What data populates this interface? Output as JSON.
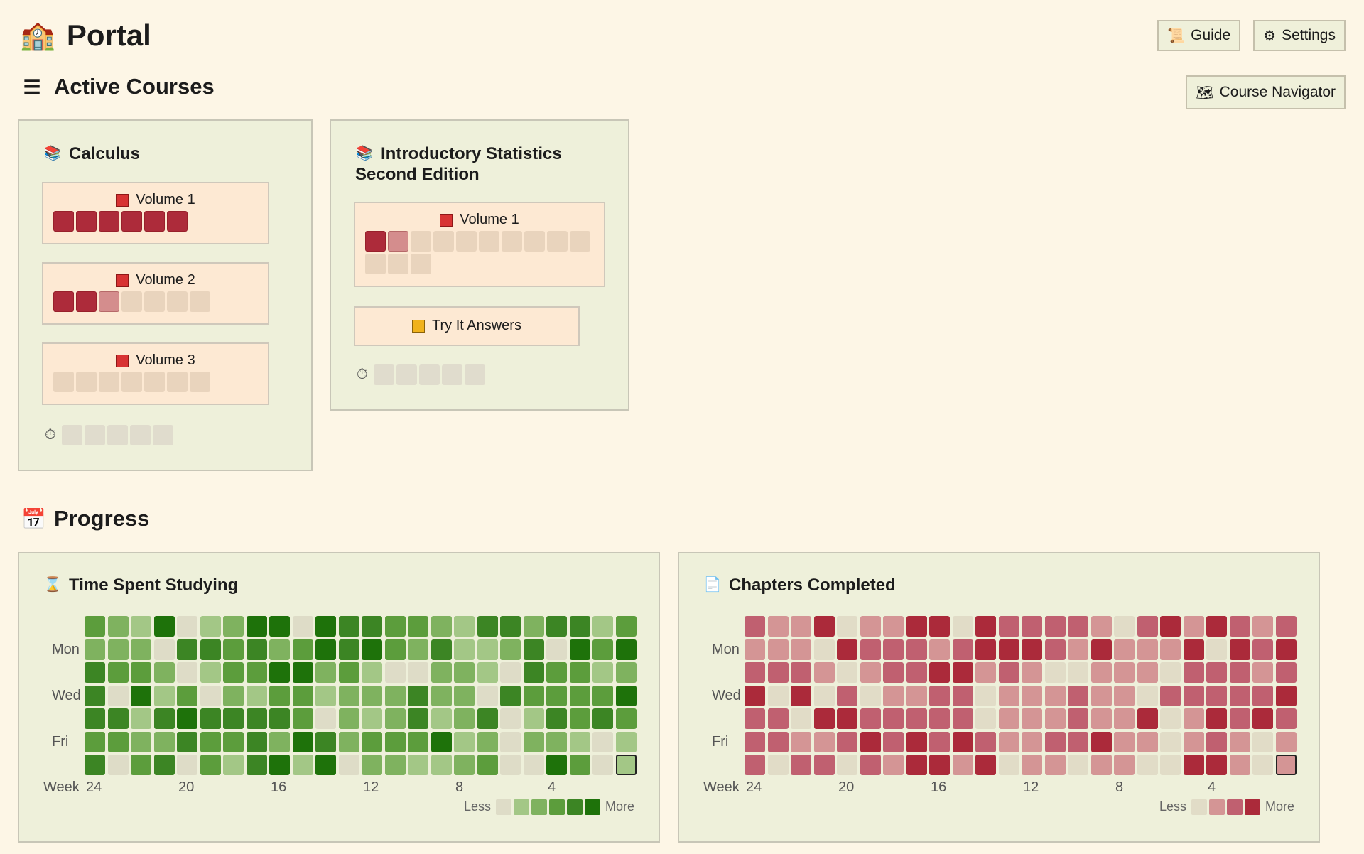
{
  "app": {
    "title": "Portal",
    "icon": "school-building-icon"
  },
  "header_buttons": [
    {
      "label": "Guide",
      "icon": "scroll-icon"
    },
    {
      "label": "Settings",
      "icon": "gear-icon"
    }
  ],
  "navigator_button": {
    "label": "Course Navigator",
    "icon": "map-icon"
  },
  "sections": {
    "active_courses": "Active Courses",
    "progress": "Progress"
  },
  "colors": {
    "done": "#ad2b3a",
    "partial": "#d48d8d",
    "todo": "#e9d4bd",
    "timer_cell": "#e0dccd"
  },
  "courses": [
    {
      "title": "Calculus",
      "volumes": [
        {
          "label": "Volume 1",
          "chapters": [
            2,
            2,
            2,
            2,
            2,
            2
          ]
        },
        {
          "label": "Volume 2",
          "chapters": [
            2,
            2,
            1,
            0,
            0,
            0,
            0
          ]
        },
        {
          "label": "Volume 3",
          "chapters": [
            0,
            0,
            0,
            0,
            0,
            0,
            0
          ]
        }
      ],
      "timer_cells": 5
    },
    {
      "title_line1": "Introductory Statistics",
      "title_line2": "Second Edition",
      "volumes": [
        {
          "label": "Volume 1",
          "chapters": [
            2,
            1,
            0,
            0,
            0,
            0,
            0,
            0,
            0,
            0,
            0,
            0,
            0
          ]
        }
      ],
      "extra": {
        "label": "Try It Answers"
      },
      "timer_cells": 5
    }
  ],
  "heatmaps": {
    "time": {
      "title": "Time Spent Studying",
      "icon": "hourglass-icon",
      "palette": [
        "#dedcc7",
        "#a3c786",
        "#7fb25f",
        "#5c9d3c",
        "#3c8524",
        "#1e720a"
      ],
      "grid": [
        [
          3,
          2,
          1,
          5,
          0,
          1,
          2,
          5,
          5,
          0,
          5,
          4,
          4,
          3,
          3,
          2,
          1,
          4,
          4,
          2,
          4,
          4,
          1,
          3
        ],
        [
          2,
          2,
          2,
          0,
          4,
          4,
          3,
          4,
          2,
          3,
          5,
          4,
          5,
          3,
          2,
          4,
          1,
          1,
          2,
          4,
          0,
          5,
          3,
          5
        ],
        [
          4,
          3,
          3,
          2,
          0,
          1,
          3,
          3,
          5,
          5,
          2,
          3,
          1,
          0,
          0,
          2,
          2,
          1,
          0,
          4,
          3,
          3,
          1,
          2
        ],
        [
          4,
          0,
          5,
          1,
          3,
          0,
          2,
          1,
          3,
          3,
          1,
          2,
          2,
          2,
          4,
          2,
          2,
          0,
          4,
          3,
          3,
          3,
          3,
          5
        ],
        [
          4,
          4,
          1,
          4,
          5,
          4,
          4,
          4,
          4,
          3,
          0,
          2,
          1,
          2,
          4,
          1,
          2,
          4,
          0,
          1,
          4,
          3,
          4,
          3
        ],
        [
          3,
          3,
          2,
          2,
          4,
          3,
          3,
          4,
          2,
          5,
          4,
          2,
          3,
          3,
          3,
          5,
          1,
          2,
          0,
          2,
          2,
          1,
          0,
          1
        ],
        [
          4,
          0,
          3,
          4,
          0,
          3,
          1,
          4,
          5,
          1,
          5,
          0,
          2,
          2,
          1,
          1,
          2,
          3,
          0,
          0,
          5,
          3,
          0,
          1
        ]
      ],
      "highlight_cell": [
        6,
        23
      ],
      "row_labels": [
        "",
        "Mon",
        "",
        "Wed",
        "",
        "Fri",
        ""
      ],
      "week_label": "Week",
      "week_ticks": [
        "24",
        "20",
        "16",
        "12",
        "8",
        "4"
      ],
      "legend_less": "Less",
      "legend_more": "More"
    },
    "chapters": {
      "title": "Chapters Completed",
      "icon": "document-icon",
      "palette": [
        "#e1dcc7",
        "#d49595",
        "#c06070",
        "#ab2a3a"
      ],
      "grid": [
        [
          2,
          1,
          1,
          3,
          0,
          1,
          1,
          3,
          3,
          0,
          3,
          2,
          2,
          2,
          2,
          1,
          0,
          2,
          3,
          1,
          3,
          2,
          1,
          2
        ],
        [
          1,
          1,
          1,
          0,
          3,
          2,
          2,
          2,
          1,
          2,
          3,
          3,
          3,
          2,
          1,
          3,
          1,
          1,
          1,
          3,
          0,
          3,
          2,
          3
        ],
        [
          2,
          2,
          2,
          1,
          0,
          1,
          2,
          2,
          3,
          3,
          1,
          2,
          1,
          0,
          0,
          1,
          1,
          1,
          0,
          2,
          2,
          2,
          1,
          2
        ],
        [
          3,
          0,
          3,
          0,
          2,
          0,
          1,
          1,
          2,
          2,
          0,
          1,
          1,
          1,
          2,
          1,
          1,
          0,
          2,
          2,
          2,
          2,
          2,
          3
        ],
        [
          2,
          2,
          0,
          3,
          3,
          2,
          2,
          2,
          2,
          2,
          0,
          1,
          1,
          1,
          2,
          1,
          1,
          3,
          0,
          1,
          3,
          2,
          3,
          2
        ],
        [
          2,
          2,
          1,
          1,
          2,
          3,
          2,
          3,
          2,
          3,
          2,
          1,
          1,
          2,
          2,
          3,
          1,
          1,
          0,
          1,
          2,
          1,
          0,
          1
        ],
        [
          2,
          0,
          2,
          2,
          0,
          2,
          1,
          3,
          3,
          1,
          3,
          0,
          1,
          1,
          0,
          1,
          1,
          0,
          0,
          3,
          3,
          1,
          0,
          1
        ]
      ],
      "highlight_cell": [
        6,
        23
      ],
      "row_labels": [
        "",
        "Mon",
        "",
        "Wed",
        "",
        "Fri",
        ""
      ],
      "week_label": "Week",
      "week_ticks": [
        "24",
        "20",
        "16",
        "12",
        "8",
        "4"
      ],
      "legend_less": "Less",
      "legend_more": "More"
    }
  }
}
